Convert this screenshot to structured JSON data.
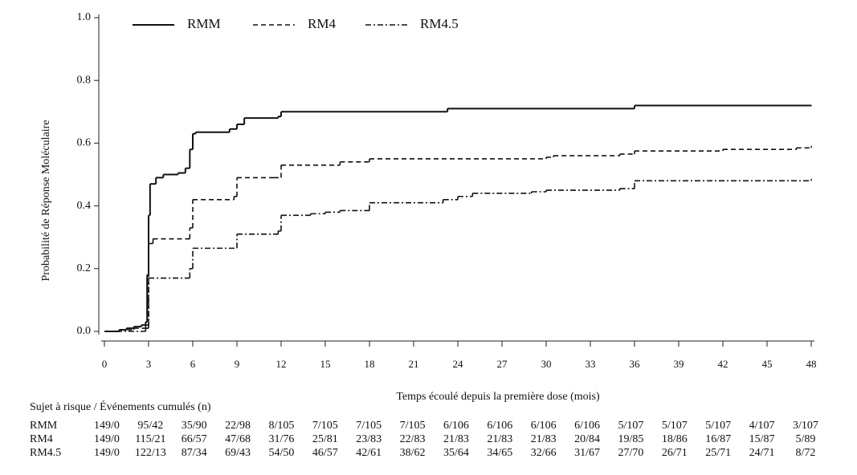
{
  "chart_data": {
    "type": "line",
    "step": true,
    "xlabel": "Temps écoulé depuis la première dose (mois)",
    "ylabel": "Probabilité de Réponse Moléculaire",
    "xlim": [
      0,
      48
    ],
    "xticks": [
      0,
      3,
      6,
      9,
      12,
      15,
      18,
      21,
      24,
      27,
      30,
      33,
      36,
      39,
      42,
      45,
      48
    ],
    "ylim": [
      0,
      1
    ],
    "yticks": [
      {
        "value": 0,
        "label": "0.0"
      },
      {
        "value": 0.2,
        "label": "0.2"
      },
      {
        "value": 0.4,
        "label": "0.4"
      },
      {
        "value": 0.6,
        "label": "0.6"
      },
      {
        "value": 0.8,
        "label": "0.8"
      },
      {
        "value": 1,
        "label": "1.0"
      }
    ],
    "legend": "top-left",
    "series": [
      {
        "name": "RMM",
        "color": "#111111",
        "dash": "none",
        "x": [
          0,
          1,
          1.5,
          2,
          2.5,
          2.8,
          2.9,
          3.0,
          3.1,
          3.5,
          4,
          5,
          5.5,
          5.8,
          6,
          6.2,
          8.5,
          9,
          9.5,
          11.8,
          12,
          23.3,
          36,
          48
        ],
        "values": [
          0,
          0.005,
          0.01,
          0.015,
          0.02,
          0.03,
          0.18,
          0.37,
          0.47,
          0.49,
          0.5,
          0.505,
          0.52,
          0.58,
          0.63,
          0.635,
          0.645,
          0.66,
          0.68,
          0.685,
          0.7,
          0.71,
          0.72,
          0.72
        ]
      },
      {
        "name": "RM4",
        "color": "#111111",
        "dash": "6,4",
        "x": [
          0,
          1,
          2,
          2.8,
          3,
          3.3,
          5.8,
          6,
          8.8,
          9,
          11.5,
          12,
          16,
          18,
          30,
          30.5,
          35,
          36,
          42,
          47,
          48
        ],
        "values": [
          0,
          0.005,
          0.01,
          0.02,
          0.28,
          0.295,
          0.33,
          0.42,
          0.43,
          0.49,
          0.49,
          0.53,
          0.54,
          0.55,
          0.555,
          0.56,
          0.565,
          0.575,
          0.58,
          0.585,
          0.59
        ]
      },
      {
        "name": "RM4.5",
        "color": "#111111",
        "dash": "7,3,2,3",
        "x": [
          0,
          2.8,
          3,
          5.8,
          6,
          9,
          11.8,
          12,
          14,
          15,
          16,
          18,
          23,
          24,
          25,
          29,
          30,
          35,
          36,
          48
        ],
        "values": [
          0,
          0.01,
          0.17,
          0.2,
          0.265,
          0.31,
          0.32,
          0.37,
          0.375,
          0.38,
          0.385,
          0.41,
          0.42,
          0.43,
          0.44,
          0.445,
          0.45,
          0.455,
          0.48,
          0.485
        ]
      }
    ],
    "risk_table": {
      "title": "Sujet à risque / Événements cumulés (n)",
      "rows": [
        {
          "name": "RMM",
          "values": [
            "149/0",
            "95/42",
            "35/90",
            "22/98",
            "8/105",
            "7/105",
            "7/105",
            "7/105",
            "6/106",
            "6/106",
            "6/106",
            "6/106",
            "5/107",
            "5/107",
            "5/107",
            "4/107",
            "3/107"
          ]
        },
        {
          "name": "RM4",
          "values": [
            "149/0",
            "115/21",
            "66/57",
            "47/68",
            "31/76",
            "25/81",
            "23/83",
            "22/83",
            "21/83",
            "21/83",
            "21/83",
            "20/84",
            "19/85",
            "18/86",
            "16/87",
            "15/87",
            "5/89"
          ]
        },
        {
          "name": "RM4.5",
          "values": [
            "149/0",
            "122/13",
            "87/34",
            "69/43",
            "54/50",
            "46/57",
            "42/61",
            "38/62",
            "35/64",
            "34/65",
            "32/66",
            "31/67",
            "27/70",
            "26/71",
            "25/71",
            "24/71",
            "8/72"
          ]
        }
      ]
    }
  }
}
